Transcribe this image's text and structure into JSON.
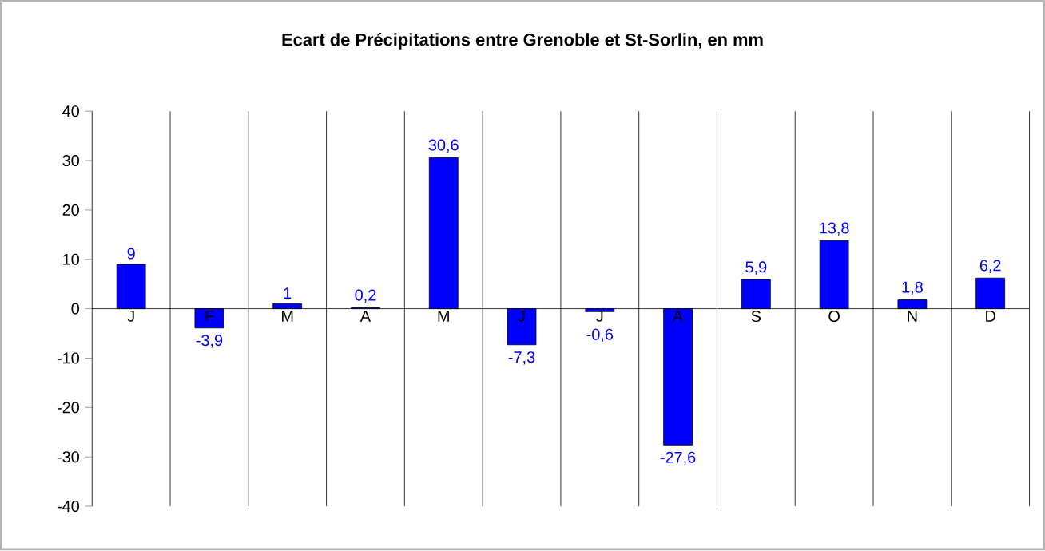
{
  "chart_data": {
    "type": "bar",
    "title": "Ecart de Précipitations entre Grenoble et St-Sorlin, en mm",
    "categories": [
      "J",
      "F",
      "M",
      "A",
      "M",
      "J",
      "J",
      "A",
      "S",
      "O",
      "N",
      "D"
    ],
    "values": [
      9,
      -3.9,
      1,
      0.2,
      30.6,
      -7.3,
      -0.6,
      -27.6,
      5.9,
      13.8,
      1.8,
      6.2
    ],
    "value_labels": [
      "9",
      "-3,9",
      "1",
      "0,2",
      "30,6",
      "-7,3",
      "-0,6",
      "-27,6",
      "5,9",
      "13,8",
      "1,8",
      "6,2"
    ],
    "color": "#0000ff",
    "ylim": [
      -40,
      40
    ],
    "yticks": [
      -40,
      -30,
      -20,
      -10,
      0,
      10,
      20,
      30,
      40
    ],
    "grid": "x"
  }
}
